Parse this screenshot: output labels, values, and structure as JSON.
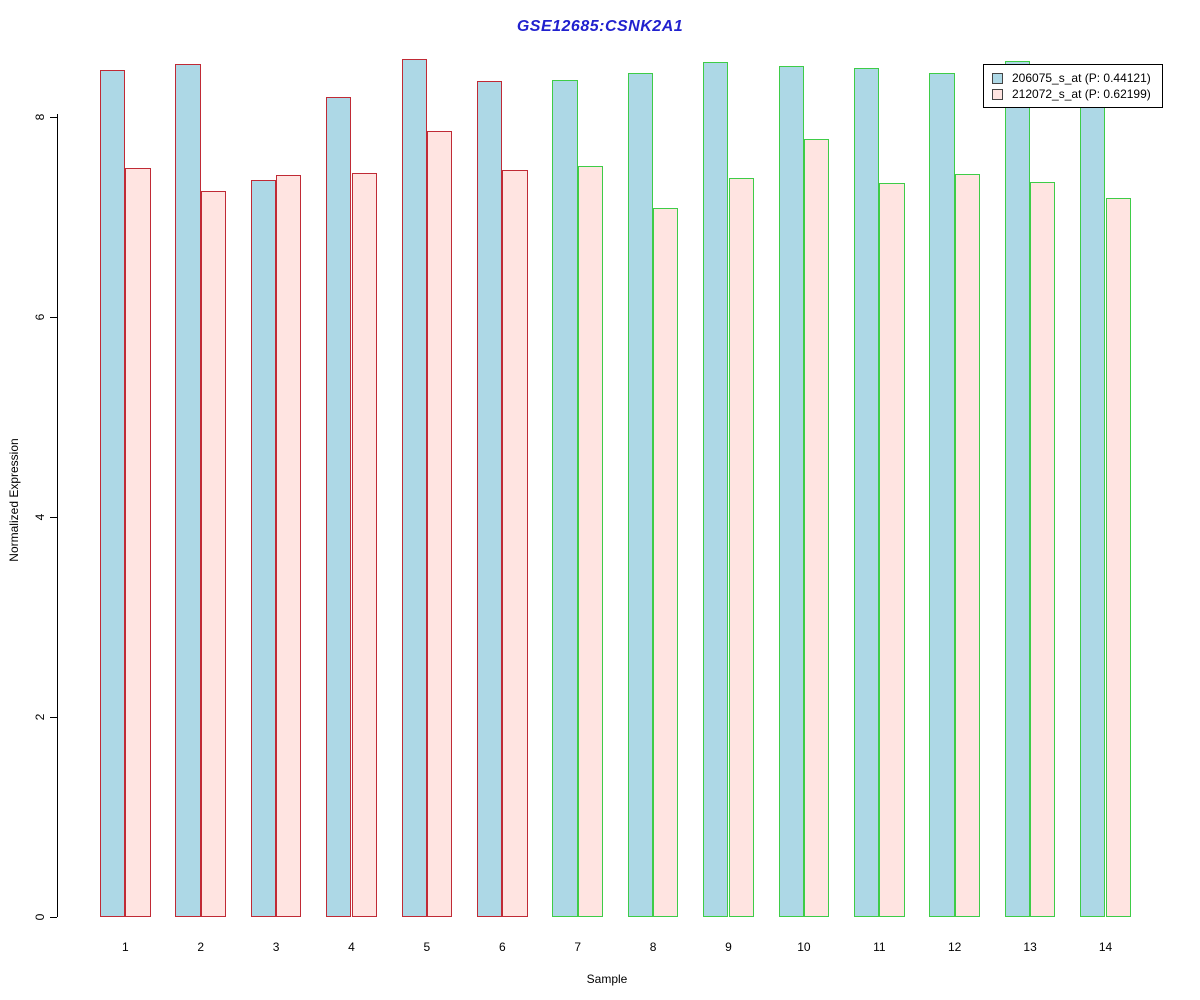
{
  "chart_data": {
    "type": "bar",
    "title": "GSE12685:CSNK2A1",
    "title_color": "#2121CE",
    "xlabel": "Sample",
    "ylabel": "Normalized Expression",
    "ylim": [
      0,
      8.6
    ],
    "yticks": [
      0,
      2,
      4,
      6,
      8
    ],
    "categories": [
      "1",
      "2",
      "3",
      "4",
      "5",
      "6",
      "7",
      "8",
      "9",
      "10",
      "11",
      "12",
      "13",
      "14"
    ],
    "grid": "off",
    "legend_position": "top-right",
    "series": [
      {
        "name": "206075_s_at",
        "legend_label": "206075_s_at (P: 0.44121)",
        "fill": "#ADD8E6",
        "values": [
          8.47,
          8.53,
          7.37,
          8.2,
          8.58,
          8.36,
          8.37,
          8.44,
          8.55,
          8.51,
          8.49,
          8.44,
          8.56,
          8.45
        ]
      },
      {
        "name": "212072_s_at",
        "legend_label": "212072_s_at (P: 0.62199)",
        "fill": "#FFE4E1",
        "values": [
          7.49,
          7.26,
          7.42,
          7.44,
          7.86,
          7.47,
          7.51,
          7.09,
          7.39,
          7.78,
          7.34,
          7.43,
          7.35,
          7.19
        ]
      }
    ],
    "bar_border_colors": {
      "samples_1_to_6": "#C02A35",
      "samples_7_to_14": "#3ECC47"
    },
    "red_border_sample_count": 6
  }
}
